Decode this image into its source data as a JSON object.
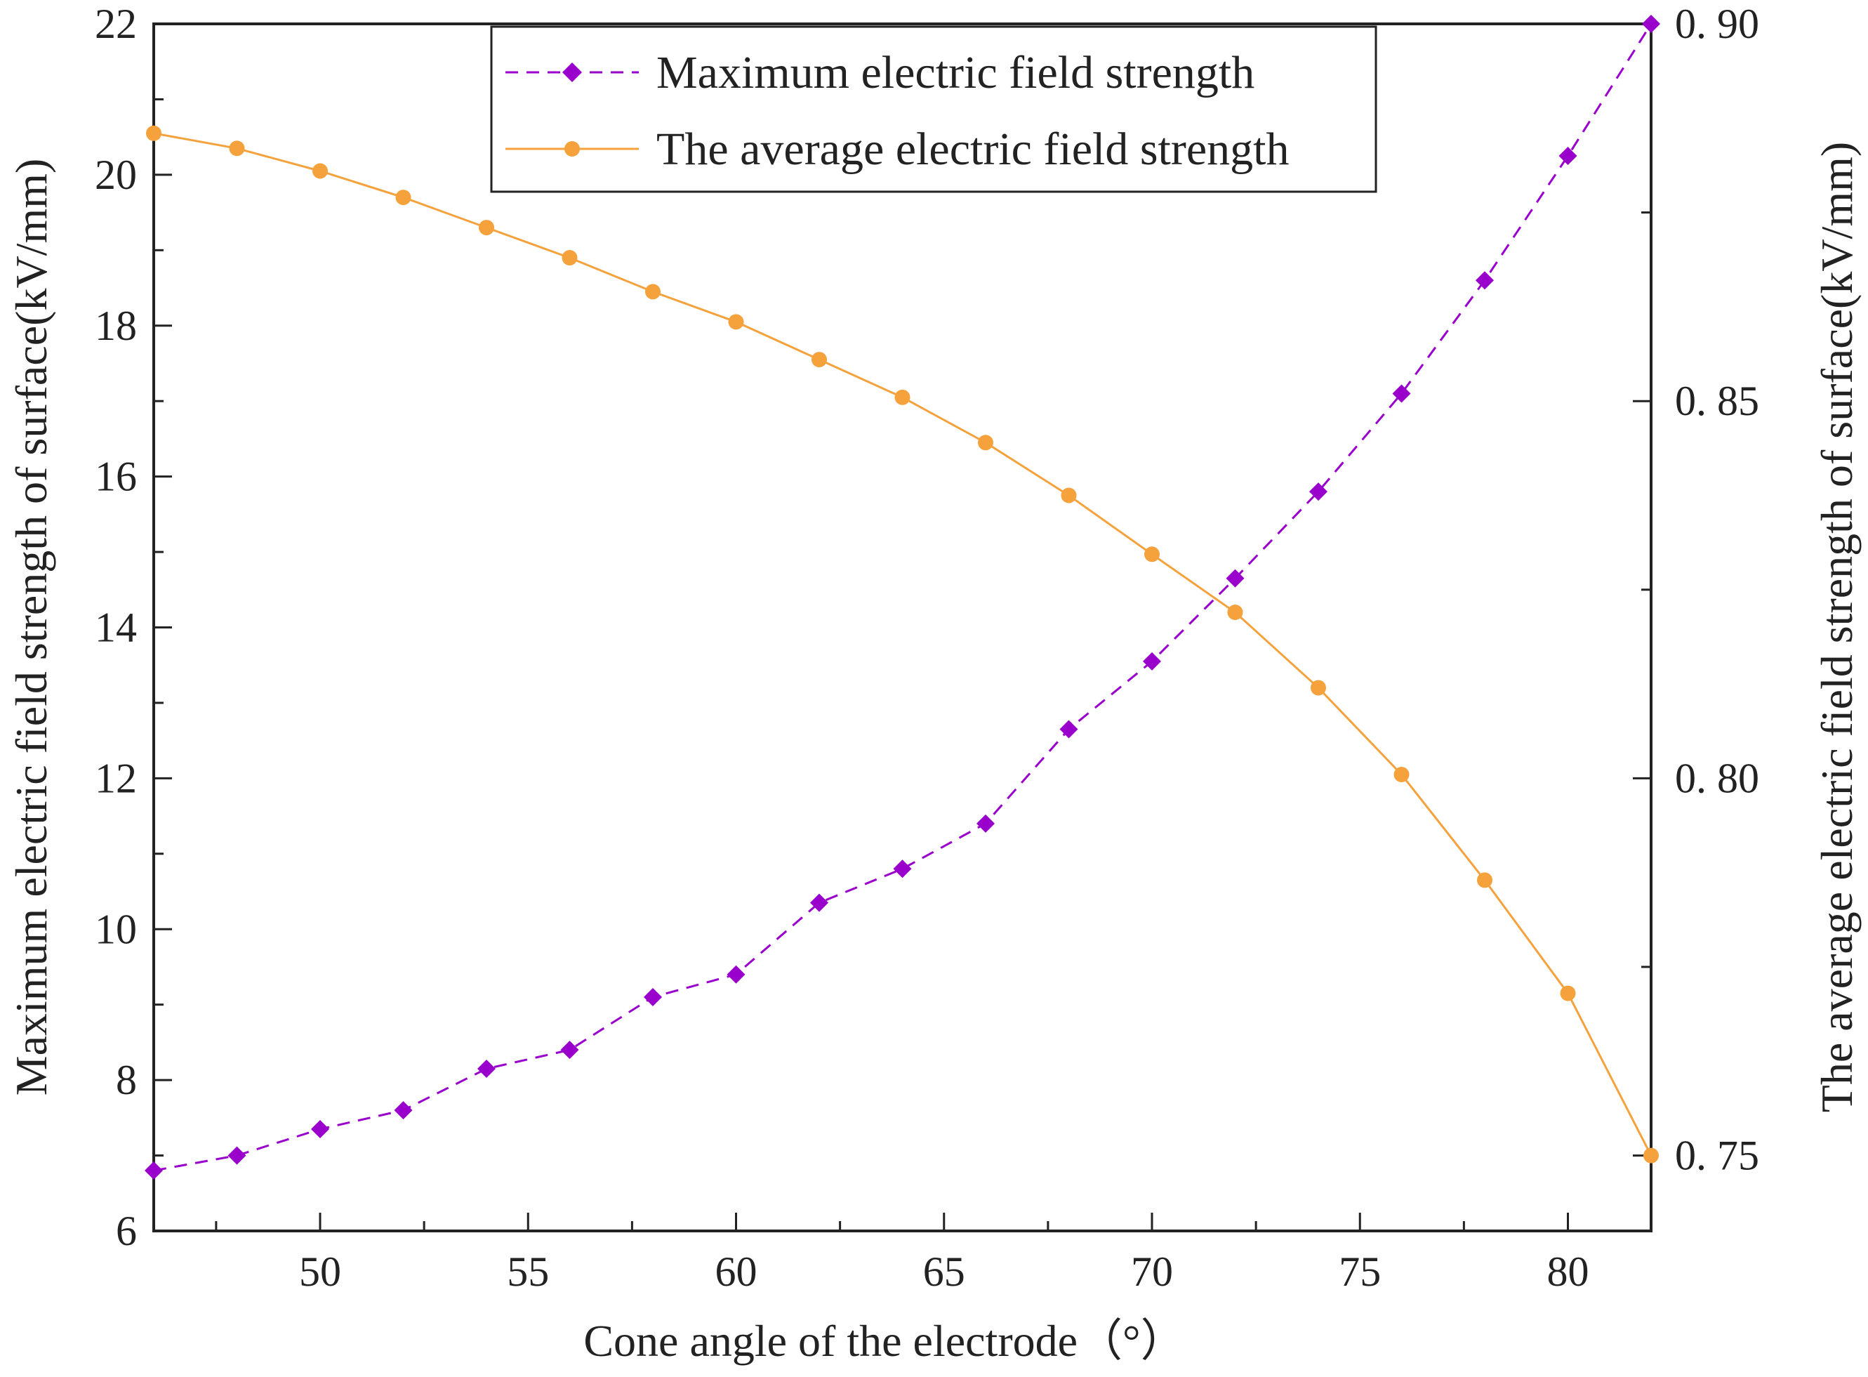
{
  "chart_data": {
    "type": "line",
    "title": "",
    "xlabel": "Cone angle of the electrode（°）",
    "ylabel_left": "Maximum electric field strength of surface(kV/mm)",
    "ylabel_right": "The average electric field strength of surface(kV/mm)",
    "xlim": [
      46,
      82
    ],
    "ylim_left": [
      6,
      22
    ],
    "ylim_right": [
      0.74,
      0.9
    ],
    "xticks": [
      "50",
      "55",
      "60",
      "65",
      "70",
      "75",
      "80"
    ],
    "yticks_left": [
      "6",
      "8",
      "10",
      "12",
      "14",
      "16",
      "18",
      "20",
      "22"
    ],
    "yticks_right": [
      "0. 75",
      "0. 80",
      "0. 85",
      "0. 90"
    ],
    "legend_position": "top-center",
    "grid": false,
    "series": [
      {
        "name": "Maximum electric field strength",
        "axis": "left",
        "style": "dashed",
        "marker": "diamond",
        "color": "#9900cc",
        "x": [
          46,
          48,
          50,
          52,
          54,
          56,
          58,
          60,
          62,
          64,
          66,
          68,
          70,
          72,
          74,
          76,
          78,
          80,
          82
        ],
        "values": [
          6.8,
          7.0,
          7.35,
          7.6,
          8.15,
          8.4,
          9.1,
          9.4,
          10.35,
          10.8,
          11.4,
          12.65,
          13.55,
          14.65,
          15.8,
          17.1,
          18.6,
          20.25,
          22.0
        ]
      },
      {
        "name": "The average electric field strength",
        "axis": "right",
        "style": "solid",
        "marker": "circle",
        "color": "#f5a23d",
        "x": [
          46,
          48,
          50,
          52,
          54,
          56,
          58,
          60,
          62,
          64,
          66,
          68,
          70,
          72,
          74,
          76,
          78,
          80,
          82
        ],
        "values": [
          0.8855,
          0.8835,
          0.8805,
          0.877,
          0.873,
          0.869,
          0.8645,
          0.8605,
          0.8555,
          0.8505,
          0.8445,
          0.8375,
          0.8297,
          0.822,
          0.812,
          0.8005,
          0.7865,
          0.7715,
          0.75
        ]
      }
    ]
  }
}
